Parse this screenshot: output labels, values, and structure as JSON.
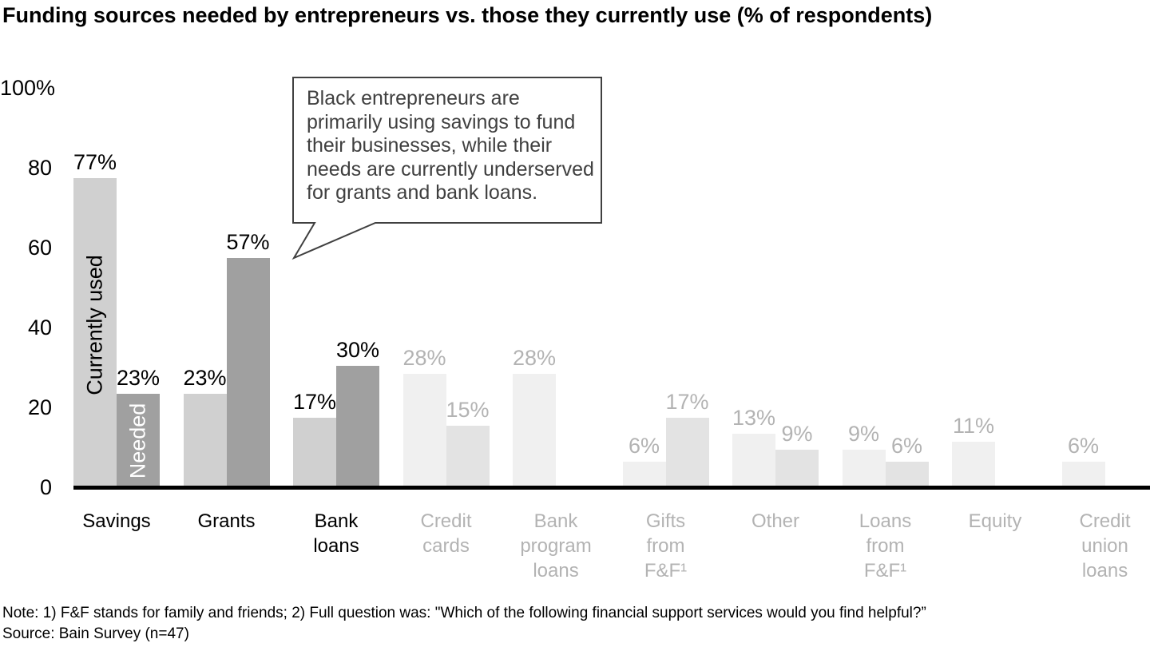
{
  "page": {
    "title": "Funding sources needed by entrepreneurs vs. those they currently use (% of respondents)"
  },
  "chart_data": {
    "type": "bar",
    "title": "Funding sources needed by entrepreneurs vs. those they currently use (% of respondents)",
    "unit": "% of respondents",
    "ylim": [
      0,
      100
    ],
    "grid": false,
    "legend_position": "labels-inside-first-bars",
    "y_ticks": [
      {
        "label": "100%",
        "value": 100
      },
      {
        "label": "80",
        "value": 80
      },
      {
        "label": "60",
        "value": 60
      },
      {
        "label": "40",
        "value": 40
      },
      {
        "label": "20",
        "value": 20
      },
      {
        "label": "0",
        "value": 0
      }
    ],
    "series": [
      {
        "name": "Currently used",
        "key": "currently_used"
      },
      {
        "name": "Needed",
        "key": "needed"
      }
    ],
    "categories": [
      {
        "label": "Savings",
        "label_lines": [
          "Savings"
        ],
        "currently_used": 77,
        "needed": 23,
        "emphasized": true
      },
      {
        "label": "Grants",
        "label_lines": [
          "Grants"
        ],
        "currently_used": 23,
        "needed": 57,
        "emphasized": true
      },
      {
        "label": "Bank loans",
        "label_lines": [
          "Bank",
          "loans"
        ],
        "currently_used": 17,
        "needed": 30,
        "emphasized": true
      },
      {
        "label": "Credit cards",
        "label_lines": [
          "Credit",
          "cards"
        ],
        "currently_used": 28,
        "needed": 15,
        "emphasized": false
      },
      {
        "label": "Bank program loans",
        "label_lines": [
          "Bank",
          "program",
          "loans"
        ],
        "currently_used": 28,
        "needed": null,
        "emphasized": false
      },
      {
        "label": "Gifts from F&F¹",
        "label_lines": [
          "Gifts",
          "from",
          "F&F¹"
        ],
        "currently_used": 6,
        "needed": 17,
        "emphasized": false
      },
      {
        "label": "Other",
        "label_lines": [
          "Other"
        ],
        "currently_used": 13,
        "needed": 9,
        "emphasized": false
      },
      {
        "label": "Loans from F&F¹",
        "label_lines": [
          "Loans",
          "from",
          "F&F¹"
        ],
        "currently_used": 9,
        "needed": 6,
        "emphasized": false
      },
      {
        "label": "Equity",
        "label_lines": [
          "Equity"
        ],
        "currently_used": 11,
        "needed": null,
        "emphasized": false
      },
      {
        "label": "Credit union loans",
        "label_lines": [
          "Credit",
          "union",
          "loans"
        ],
        "currently_used": 6,
        "needed": null,
        "emphasized": false
      }
    ]
  },
  "callout": {
    "lines": [
      "Black entrepreneurs are",
      "primarily using savings to fund",
      "their businesses, while their",
      "needs are currently underserved",
      "for grants and bank loans."
    ],
    "text": "Black entrepreneurs are primarily using savings to fund their businesses, while their needs are currently underserved for grants and bank loans."
  },
  "footer": {
    "note": "Note: 1) F&F stands for family and friends; 2) Full question was: \"Which of the following financial support services would you find helpful?”",
    "source": "Source: Bain Survey (n=47)"
  },
  "colors": {
    "bar_currently_used": "#d0d0d0",
    "bar_needed": "#a0a0a0",
    "bar_currently_used_faded": "#f0f0f0",
    "bar_needed_faded": "#e3e3e3",
    "text_black": "#000000",
    "text_faded": "#b3b3b3",
    "inbar_label_used": "#000000",
    "inbar_label_needed": "#ffffff",
    "callout_border": "#404040",
    "axis": "#000000"
  }
}
